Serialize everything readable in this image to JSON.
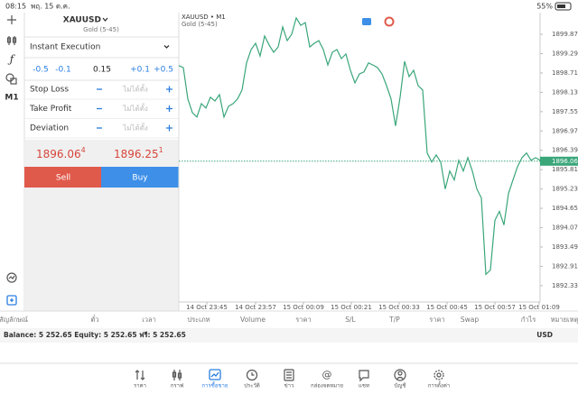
{
  "status_bar": {
    "time": "08:15",
    "date": "พฤ. 15 ต.ค.",
    "battery": "55%"
  },
  "toolbar": {
    "timeframe": "M1"
  },
  "order_panel": {
    "symbol": "XAUUSD",
    "description": "Gold (5-45)",
    "execution": "Instant Execution",
    "volume_steps": [
      "-0.5",
      "-0.1",
      "0.15",
      "+0.1",
      "+0.5"
    ],
    "fields": [
      {
        "label": "Stop Loss",
        "value": "ไม่ได้ตั้ง"
      },
      {
        "label": "Take Profit",
        "value": "ไม่ได้ตั้ง"
      },
      {
        "label": "Deviation",
        "value": "ไม่ได้ตั้ง"
      }
    ],
    "bid": {
      "main": "1896.06",
      "sup": "4"
    },
    "ask": {
      "main": "1896.25",
      "sup": "1"
    },
    "sell": "Sell",
    "buy": "Buy"
  },
  "chart_data": {
    "type": "line",
    "title": "XAUUSD • M1",
    "subtitle": "Gold (5-45)",
    "color": "#3aa67a",
    "values": [
      1898.93,
      1898.87,
      1897.93,
      1897.52,
      1897.39,
      1897.79,
      1897.66,
      1897.98,
      1897.87,
      1898.06,
      1897.39,
      1897.71,
      1897.79,
      1897.93,
      1898.2,
      1899.01,
      1899.41,
      1899.6,
      1899.22,
      1899.82,
      1899.55,
      1899.33,
      1899.49,
      1900.09,
      1899.68,
      1899.87,
      1900.36,
      1900.14,
      1900.22,
      1899.49,
      1899.6,
      1899.68,
      1899.41,
      1898.95,
      1899.33,
      1899.41,
      1899.14,
      1899.28,
      1898.79,
      1898.41,
      1898.68,
      1898.74,
      1899.01,
      1898.95,
      1898.87,
      1898.68,
      1898.33,
      1897.93,
      1897.12,
      1897.98,
      1899.06,
      1898.6,
      1898.79,
      1898.33,
      1898.2,
      1896.31,
      1896.04,
      1896.25,
      1896.04,
      1895.23,
      1895.77,
      1895.5,
      1896.09,
      1895.77,
      1896.17,
      1895.77,
      1895.23,
      1894.96,
      1892.67,
      1892.8,
      1894.29,
      1894.56,
      1894.15,
      1895.09,
      1895.5,
      1895.9,
      1896.17,
      1896.31,
      1896.09,
      1896.17,
      1896.09
    ],
    "xlim": [
      0,
      80
    ],
    "xticks": [
      {
        "value": 6.2,
        "label": "14 Oct 23:45"
      },
      {
        "value": 17,
        "label": "14 Oct 23:57"
      },
      {
        "value": 27.6,
        "label": "15 Oct 00:09"
      },
      {
        "value": 38.2,
        "label": "15 Oct 00:21"
      },
      {
        "value": 48.8,
        "label": "15 Oct 00:33"
      },
      {
        "value": 59.4,
        "label": "15 Oct 00:45"
      },
      {
        "value": 70,
        "label": "15 Oct 00:57"
      },
      {
        "value": 79.8,
        "label": "15 Oct 01:09"
      }
    ],
    "ylim": [
      1891.84,
      1900.52
    ],
    "yticks": [
      {
        "value": 1899.87,
        "label": "1899.870"
      },
      {
        "value": 1899.29,
        "label": "1899.290"
      },
      {
        "value": 1898.71,
        "label": "1898.710"
      },
      {
        "value": 1898.13,
        "label": "1898.130"
      },
      {
        "value": 1897.55,
        "label": "1897.550"
      },
      {
        "value": 1896.97,
        "label": "1896.970"
      },
      1896.39,
      {
        "value": 1895.81,
        "label": "1895.810"
      },
      {
        "value": 1895.23,
        "label": "1895.230"
      },
      {
        "value": 1894.65,
        "label": "1894.650"
      },
      {
        "value": 1894.07,
        "label": "1894.070"
      },
      {
        "value": 1893.49,
        "label": "1893.490"
      },
      {
        "value": 1892.91,
        "label": "1892.910"
      },
      1892.33
    ],
    "current_price": 1896.064,
    "current_price_color": "#3aa67a"
  },
  "positions": {
    "columns": [
      "สัญลักษณ์",
      "ตั๋ว",
      "เวลา",
      "ประเภท",
      "Volume",
      "ราคา",
      "S/L",
      "T/P",
      "ราคา",
      "Swap",
      "กำไร",
      "หมายเหตุ"
    ],
    "balance": "Balance: 5 252.65 Equity: 5 252.65 ฟรี: 5 252.65",
    "currency": "USD"
  },
  "tabs": [
    "ราคา",
    "กราฟ",
    "การซื้อขาย",
    "ประวัติ",
    "ข่าว",
    "กล่องจดหมาย",
    "แชท",
    "บัญชี",
    "การตั้งค่า"
  ]
}
